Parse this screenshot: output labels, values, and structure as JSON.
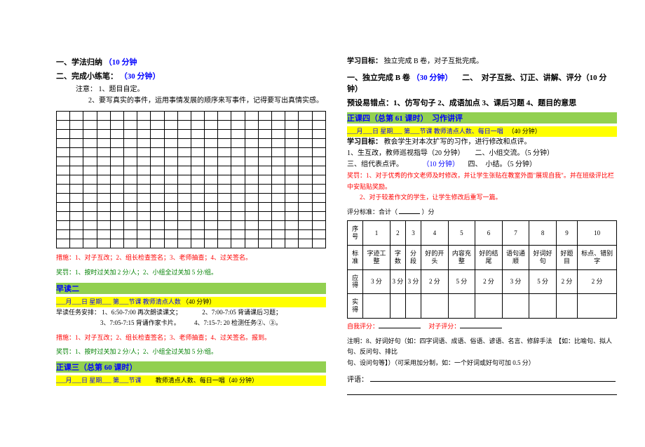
{
  "left": {
    "h1_a": "一、学法归纳",
    "h1_b": "（10 分钟",
    "h2_a": "二、完成小练笔：",
    "h2_b": "（30 分钟）",
    "tip_label": "注意：",
    "tip1": "1、题目自定。",
    "tip2": "2、要写真实的事件，运用事情发展的顺序来写事件，记得要写出真情实感。",
    "measure": "措施：1、对子互改；2、组长检查签名；3、老师抽查；4、过关签名。",
    "reward": "奖罚：1、按时过关加 2 分/人；2、小组全过关加 5 分/组。",
    "zaodu2": "早读二",
    "zaodu2_date": "___月___日  星期___  第___节课  教师清点人数",
    "zaodu2_time": "（40 分钟）",
    "task_label": "早读任务安排：",
    "task1": "1、6:50-7:00 再次朗读课文；",
    "task2": "2、7:00-7:05 背诵课后习题；",
    "task3": "3、7:05-7:15 背诵作家卡片。",
    "task4": "4、7:15-7: 20 检测任务②、③。",
    "measure2": "措施：1、对子互改；2、组长检查签名；3、老师抽查；4、过关签名。报到。",
    "reward2": "奖罚：1、按时过关加 2 分/人；2、小组全过关加 5 分/组。",
    "zk3": "正课三（总第 60 课时）",
    "zk3_date": "___月___日  星期___  第___节课",
    "zk3_suffix": "教师清点人数、每日一唱（40 分钟）",
    "grid": {
      "rows": 15,
      "cols": 20
    }
  },
  "right": {
    "goal_label": "学习目标：",
    "goal_text": "独立完成 B 卷，对子互批完成。",
    "r1_a": "一、独立完成 B 卷",
    "r1_b": "（30 分钟）",
    "r1_c": "二、　对子互批、订正、讲解、评分（10 分钟）",
    "preset": "预设易错点：1、仿写句子 2、成语加点 3、课后习题 4、题目的意思",
    "zk4": "正课四（总第 61 课时）　习作讲评",
    "zk4_date": "___月___日  星期___  第___节课  教师清点人数、每日一唱",
    "zk4_time": "（40 分钟）",
    "goal2_label": "学习目标：",
    "goal2_text": "教会学生对本次扩写的习作，进行修改和点评。",
    "step1": "1、生互改，教师巡视指导（20 分钟）　　二、小组交流。（5 分钟）",
    "step3a": "三、组代表点评。",
    "step3b": "（10 分钟）",
    "step3c": "　四、　小结。（5 分钟）",
    "rw1": "奖罚：1、对于优秀的作文老师及时修改，并让学生张贴在教室外面\"展现自我\"。并在班级评比栏中安贴贴奖励。",
    "rw2": "2、对于较差作文的学生，让学生修改后重写一篇。",
    "score_label_a": "评分标准：合计（",
    "score_label_b": "）分",
    "self_eval": "自我评分：",
    "pair_eval": "　对子评分：",
    "note8_a": "注明：8、好词好句（如：四字词语、成语、俗语、谚语、名言、修辞手法　【如：比喻句、拟人句、反问句、排比",
    "note8_b": "句、设问句等】）（可采用加分制，如：一个好词或好句可加 0.5 分）",
    "comment": "评语：",
    "table": {
      "r1": [
        "序号",
        "1",
        "2",
        "3",
        "4",
        "5",
        "6",
        "7",
        "8",
        "9",
        "10"
      ],
      "r2": [
        "标准",
        "字迹工整",
        "字数",
        "分段",
        "好的开头",
        "内容充整",
        "好的结尾",
        "语句通顺",
        "好词好句",
        "好题目",
        "标点、错别字"
      ],
      "r3": [
        "应得",
        "3 分",
        "3 分",
        "3 分",
        "2 分",
        "5 分",
        "2 分",
        "3 分",
        "5 分",
        "2 分",
        "2 分"
      ],
      "r4": [
        "实得",
        "",
        "",
        "",
        "",
        "",
        "",
        "",
        "",
        "",
        ""
      ]
    }
  }
}
